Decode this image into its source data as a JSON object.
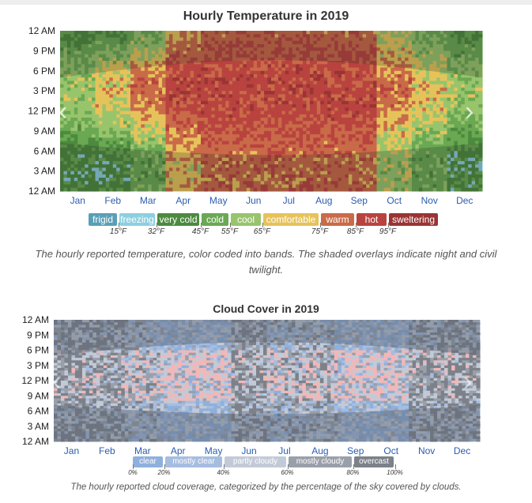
{
  "temperature_chart": {
    "caption": "The hourly reported temperature, color coded into bands. The shaded overlays indicate night and civil twilight.",
    "legend": [
      {
        "label": "frigid",
        "color": "#5a9fb7"
      },
      {
        "label": "freezing",
        "color": "#8ccfe0"
      },
      {
        "label": "very cold",
        "color": "#4c8a3e"
      },
      {
        "label": "cold",
        "color": "#6aa853"
      },
      {
        "label": "cool",
        "color": "#98c46c"
      },
      {
        "label": "comfortable",
        "color": "#e6c35a"
      },
      {
        "label": "warm",
        "color": "#c96a48"
      },
      {
        "label": "hot",
        "color": "#b9433f"
      },
      {
        "label": "sweltering",
        "color": "#9a3434"
      }
    ],
    "thresholds": [
      "15°F",
      "32°F",
      "45°F",
      "55°F",
      "65°F",
      "75°F",
      "85°F",
      "95°F"
    ]
  },
  "cloud_chart": {
    "caption": "The hourly reported cloud coverage, categorized by the percentage of the sky covered by clouds.",
    "legend": [
      {
        "label": "clear",
        "color": "#8fb0dc"
      },
      {
        "label": "mostly clear",
        "color": "#a6bde0"
      },
      {
        "label": "partly cloudy",
        "color": "#c3cad7"
      },
      {
        "label": "mostly cloudy",
        "color": "#9aa0aa"
      },
      {
        "label": "overcast",
        "color": "#7c818a"
      }
    ],
    "thresholds": [
      "0%",
      "20%",
      "40%",
      "60%",
      "80%",
      "100%"
    ]
  },
  "chart_data": [
    {
      "type": "heatmap",
      "title": "Hourly Temperature in 2019",
      "x_categories": [
        "Jan",
        "Feb",
        "Mar",
        "Apr",
        "May",
        "Jun",
        "Jul",
        "Aug",
        "Sep",
        "Oct",
        "Nov",
        "Dec"
      ],
      "y_categories": [
        "12 AM",
        "3 AM",
        "6 AM",
        "9 AM",
        "12 PM",
        "3 PM",
        "6 PM",
        "9 PM",
        "12 AM"
      ],
      "monthly_band_by_hour": [
        {
          "month": "Jan",
          "night": "very cold",
          "day": "cool"
        },
        {
          "month": "Feb",
          "night": "very cold",
          "day": "comfortable"
        },
        {
          "month": "Mar",
          "night": "cold",
          "day": "warm"
        },
        {
          "month": "Apr",
          "night": "comfortable",
          "day": "hot"
        },
        {
          "month": "May",
          "night": "warm",
          "day": "hot"
        },
        {
          "month": "Jun",
          "night": "warm",
          "day": "hot"
        },
        {
          "month": "Jul",
          "night": "warm",
          "day": "hot"
        },
        {
          "month": "Aug",
          "night": "warm",
          "day": "hot"
        },
        {
          "month": "Sep",
          "night": "warm",
          "day": "hot"
        },
        {
          "month": "Oct",
          "night": "cool",
          "day": "warm"
        },
        {
          "month": "Nov",
          "night": "cold",
          "day": "comfortable"
        },
        {
          "month": "Dec",
          "night": "very cold",
          "day": "cool"
        }
      ]
    },
    {
      "type": "heatmap",
      "title": "Cloud Cover in 2019",
      "x_categories": [
        "Jan",
        "Feb",
        "Mar",
        "Apr",
        "May",
        "Jun",
        "Jul",
        "Aug",
        "Sep",
        "Oct",
        "Nov",
        "Dec"
      ],
      "y_categories": [
        "12 AM",
        "3 AM",
        "6 AM",
        "9 AM",
        "12 PM",
        "3 PM",
        "6 PM",
        "9 PM",
        "12 AM"
      ],
      "monthly_dominant_category": [
        {
          "month": "Jan",
          "category": "mostly cloudy"
        },
        {
          "month": "Feb",
          "category": "mostly cloudy"
        },
        {
          "month": "Mar",
          "category": "partly cloudy"
        },
        {
          "month": "Apr",
          "category": "mostly clear"
        },
        {
          "month": "May",
          "category": "mostly clear"
        },
        {
          "month": "Jun",
          "category": "mostly cloudy"
        },
        {
          "month": "Jul",
          "category": "partly cloudy"
        },
        {
          "month": "Aug",
          "category": "partly cloudy"
        },
        {
          "month": "Sep",
          "category": "mostly clear"
        },
        {
          "month": "Oct",
          "category": "mostly clear"
        },
        {
          "month": "Nov",
          "category": "mostly cloudy"
        },
        {
          "month": "Dec",
          "category": "mostly cloudy"
        }
      ]
    }
  ]
}
